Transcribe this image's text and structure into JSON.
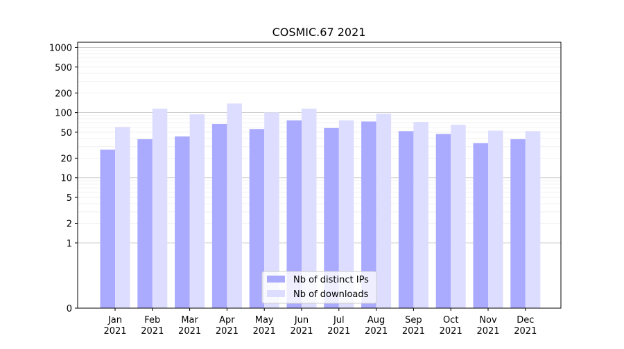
{
  "chart_data": {
    "type": "bar",
    "title": "COSMIC.67 2021",
    "xlabel": "",
    "ylabel": "",
    "scale": "symlog",
    "ylim": [
      0,
      1200
    ],
    "yticks": [
      {
        "value": 0,
        "label": "0"
      },
      {
        "value": 1,
        "label": "1"
      },
      {
        "value": 2,
        "label": "2"
      },
      {
        "value": 5,
        "label": "5"
      },
      {
        "value": 10,
        "label": "10"
      },
      {
        "value": 20,
        "label": "20"
      },
      {
        "value": 50,
        "label": "50"
      },
      {
        "value": 100,
        "label": "100"
      },
      {
        "value": 200,
        "label": "200"
      },
      {
        "value": 500,
        "label": "500"
      },
      {
        "value": 1000,
        "label": "1000"
      }
    ],
    "categories": [
      {
        "month": "Jan",
        "year": "2021"
      },
      {
        "month": "Feb",
        "year": "2021"
      },
      {
        "month": "Mar",
        "year": "2021"
      },
      {
        "month": "Apr",
        "year": "2021"
      },
      {
        "month": "May",
        "year": "2021"
      },
      {
        "month": "Jun",
        "year": "2021"
      },
      {
        "month": "Jul",
        "year": "2021"
      },
      {
        "month": "Aug",
        "year": "2021"
      },
      {
        "month": "Sep",
        "year": "2021"
      },
      {
        "month": "Oct",
        "year": "2021"
      },
      {
        "month": "Nov",
        "year": "2021"
      },
      {
        "month": "Dec",
        "year": "2021"
      }
    ],
    "series": [
      {
        "name": "Nb of distinct IPs",
        "color": "#aaaaff",
        "values": [
          27,
          39,
          43,
          67,
          56,
          76,
          58,
          73,
          52,
          47,
          34,
          39
        ]
      },
      {
        "name": "Nb of downloads",
        "color": "#ddddff",
        "values": [
          60,
          115,
          94,
          138,
          100,
          115,
          76,
          96,
          72,
          65,
          53,
          52
        ]
      }
    ],
    "grid": true,
    "legend_position": "bottom-center"
  }
}
